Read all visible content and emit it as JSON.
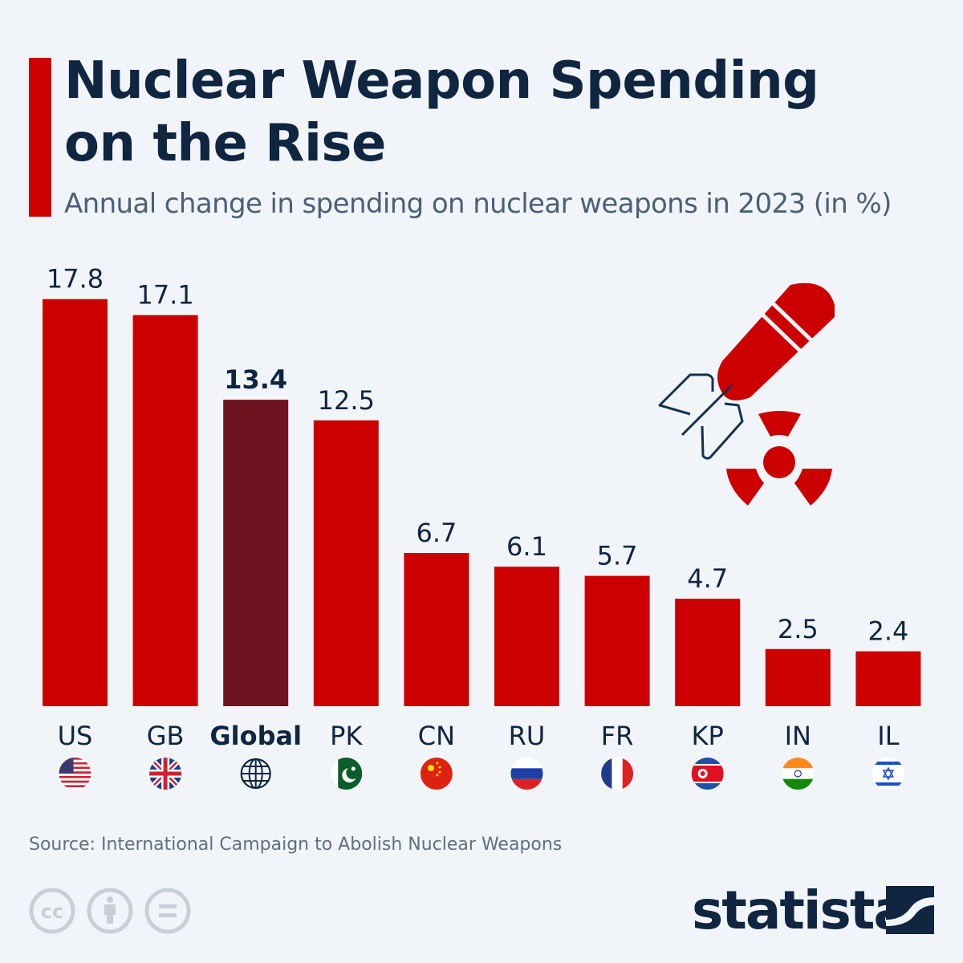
{
  "title_line1": "Nuclear Weapon Spending",
  "title_line2": "on the Rise",
  "subtitle": "Annual change in spending on nuclear weapons in 2023 (in %)",
  "source": "Source: International Campaign to Abolish Nuclear Weapons",
  "brand": "statista",
  "colors": {
    "bar": "#cc0000",
    "highlight": "#6e1420",
    "title": "#0f2540",
    "background": "#f1f5fa"
  },
  "icons": [
    "missile-icon",
    "radiation-icon",
    "cc-license-icon",
    "cc-by-icon",
    "cc-nd-icon",
    "statista-logo-icon"
  ],
  "chart_data": {
    "type": "bar",
    "title": "Nuclear Weapon Spending on the Rise",
    "subtitle": "Annual change in spending on nuclear weapons in 2023 (in %)",
    "categories": [
      "US",
      "GB",
      "Global",
      "PK",
      "CN",
      "RU",
      "FR",
      "KP",
      "IN",
      "IL"
    ],
    "values": [
      17.8,
      17.1,
      13.4,
      12.5,
      6.7,
      6.1,
      5.7,
      4.7,
      2.5,
      2.4
    ],
    "value_labels": [
      "17.8",
      "17.1",
      "13.4",
      "12.5",
      "6.7",
      "6.1",
      "5.7",
      "4.7",
      "2.5",
      "2.4"
    ],
    "highlighted": "Global",
    "flags": [
      "us-flag",
      "gb-flag",
      "globe",
      "pk-flag",
      "cn-flag",
      "ru-flag",
      "fr-flag",
      "kp-flag",
      "in-flag",
      "il-flag"
    ],
    "ylim": [
      0,
      18
    ],
    "grid": false,
    "legend": "none"
  }
}
